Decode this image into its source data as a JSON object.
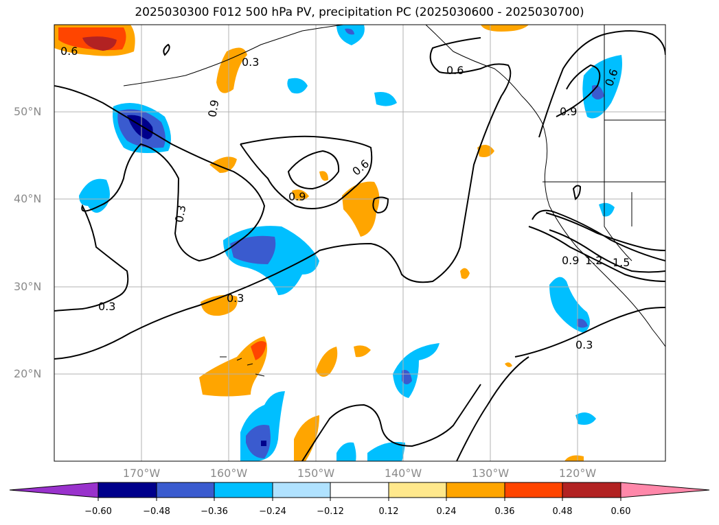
{
  "title": "2025030300 F012 500 hPa PV, precipitation PC (2025030600 - 2025030700)",
  "map": {
    "lat_labels": [
      "50°N",
      "40°N",
      "30°N",
      "20°N"
    ],
    "lon_labels": [
      "170°W",
      "160°W",
      "150°W",
      "140°W",
      "130°W",
      "120°W"
    ],
    "contour_labels": [
      "0.6",
      "0.3",
      "0.9",
      "0.3",
      "0.6",
      "0.9",
      "0.6",
      "0.3",
      "0.3",
      "0.6",
      "0.9",
      "0.9",
      "1.2",
      "1.5",
      "0.3"
    ]
  },
  "colorbar": {
    "ticks": [
      "−0.60",
      "−0.48",
      "−0.36",
      "−0.24",
      "−0.12",
      "0.12",
      "0.24",
      "0.36",
      "0.48",
      "0.60"
    ],
    "colors": [
      "#9932cc",
      "#00008b",
      "#3a5bcf",
      "#00bfff",
      "#b0e2ff",
      "#ffffff",
      "#ffe88c",
      "#ffa500",
      "#ff4500",
      "#b22222",
      "#ff88aa"
    ]
  }
}
